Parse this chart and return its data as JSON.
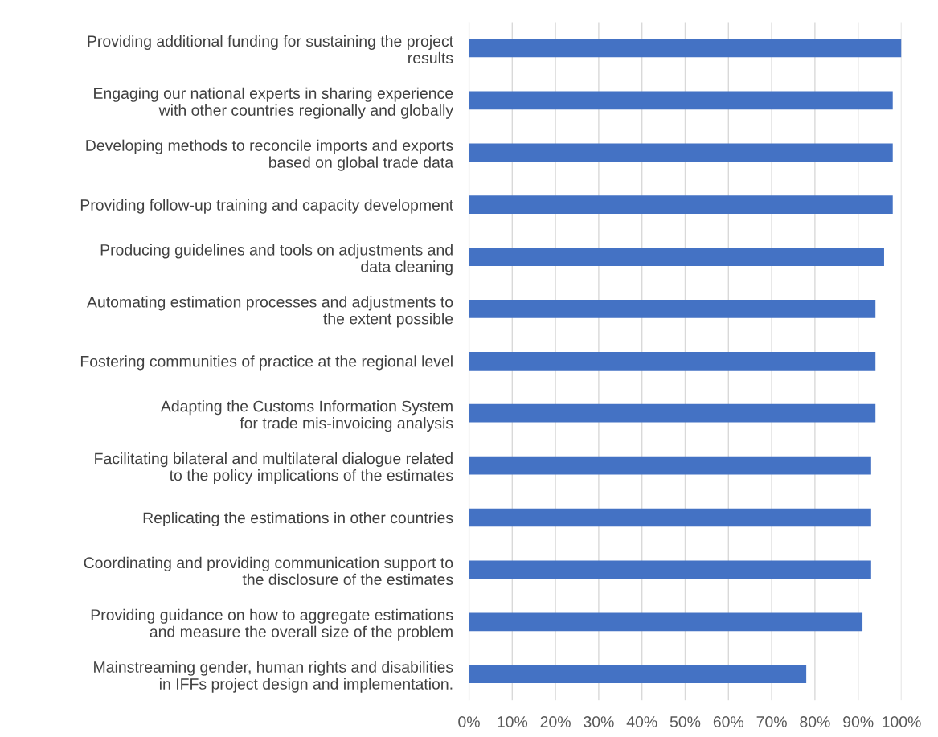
{
  "chart_data": {
    "type": "bar",
    "orientation": "horizontal",
    "categories": [
      "Providing additional funding for sustaining the project\nresults",
      "Engaging our national experts in sharing experience\nwith other countries regionally and globally",
      "Developing methods to reconcile imports and exports\nbased on global trade data",
      "Providing follow-up training and capacity development",
      "Producing guidelines and tools on adjustments and\ndata cleaning",
      "Automating estimation processes and adjustments to\nthe extent possible",
      "Fostering communities of practice at the regional level",
      "Adapting the Customs Information System\nfor trade mis-invoicing analysis",
      "Facilitating bilateral and multilateral dialogue related\nto the policy implications of the estimates",
      "Replicating the estimations in other countries",
      "Coordinating and providing communication support to\nthe disclosure of the estimates",
      "Providing guidance on how to aggregate estimations\nand measure the overall size of the problem",
      "Mainstreaming gender, human rights and disabilities\nin IFFs project design and implementation."
    ],
    "values": [
      100,
      98,
      98,
      98,
      96,
      94,
      94,
      94,
      93,
      93,
      93,
      91,
      78
    ],
    "color": "#4472c4",
    "xlim": [
      0,
      100
    ],
    "xticks": [
      {
        "value": 0,
        "label": "0%"
      },
      {
        "value": 10,
        "label": "10%"
      },
      {
        "value": 20,
        "label": "20%"
      },
      {
        "value": 30,
        "label": "30%"
      },
      {
        "value": 40,
        "label": "40%"
      },
      {
        "value": 50,
        "label": "50%"
      },
      {
        "value": 60,
        "label": "60%"
      },
      {
        "value": 70,
        "label": "70%"
      },
      {
        "value": 80,
        "label": "80%"
      },
      {
        "value": 90,
        "label": "90%"
      },
      {
        "value": 100,
        "label": "100%"
      }
    ],
    "grid": "x"
  }
}
